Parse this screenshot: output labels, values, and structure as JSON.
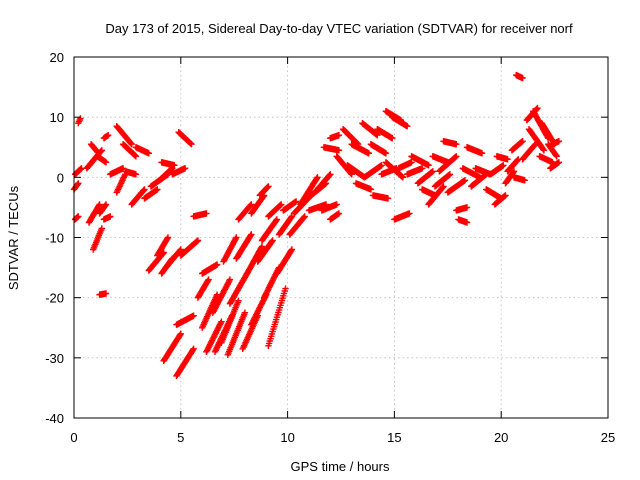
{
  "chart_data": {
    "type": "scatter",
    "title": "Day 173 of 2015, Sidereal Day-to-day VTEC variation (SDTVAR) for receiver norf",
    "xlabel": "GPS time / hours",
    "ylabel": "SDTVAR / TECUs",
    "xlim": [
      0,
      25
    ],
    "ylim": [
      -40,
      20
    ],
    "xticks": [
      "0",
      "5",
      "10",
      "15",
      "20",
      "25"
    ],
    "yticks": [
      "-40",
      "-30",
      "-20",
      "-10",
      "0",
      "10",
      "20"
    ],
    "grid": true,
    "marker": "plus",
    "color": "#ff0000",
    "tracks": [
      {
        "x": [
          0.05,
          0.35
        ],
        "y": [
          0.5,
          1.5
        ]
      },
      {
        "x": [
          0.0,
          0.2
        ],
        "y": [
          -2.0,
          -1.0
        ]
      },
      {
        "x": [
          0.2,
          0.3
        ],
        "y": [
          9.0,
          9.8
        ]
      },
      {
        "x": [
          0.05,
          0.2
        ],
        "y": [
          -7.0,
          -6.5
        ]
      },
      {
        "x": [
          0.6,
          1.3
        ],
        "y": [
          1.5,
          4.5
        ]
      },
      {
        "x": [
          0.7,
          1.2
        ],
        "y": [
          -7.5,
          -4.5
        ]
      },
      {
        "x": [
          0.9,
          1.3
        ],
        "y": [
          -12.0,
          -8.5
        ]
      },
      {
        "x": [
          0.8,
          1.1
        ],
        "y": [
          5.5,
          4.2
        ]
      },
      {
        "x": [
          1.1,
          1.5
        ],
        "y": [
          3.5,
          2.5
        ]
      },
      {
        "x": [
          1.2,
          1.5
        ],
        "y": [
          -6.0,
          -4.5
        ]
      },
      {
        "x": [
          1.2,
          1.5
        ],
        "y": [
          -19.5,
          -19.3
        ]
      },
      {
        "x": [
          1.4,
          1.6
        ],
        "y": [
          6.5,
          7.0
        ]
      },
      {
        "x": [
          1.4,
          1.7
        ],
        "y": [
          -7.0,
          -6.5
        ]
      },
      {
        "x": [
          1.7,
          2.3
        ],
        "y": [
          0.5,
          1.5
        ]
      },
      {
        "x": [
          2.0,
          2.7
        ],
        "y": [
          8.5,
          5.5
        ]
      },
      {
        "x": [
          2.0,
          2.4
        ],
        "y": [
          -2.5,
          0.5
        ]
      },
      {
        "x": [
          2.3,
          2.9
        ],
        "y": [
          5.5,
          3.5
        ]
      },
      {
        "x": [
          2.4,
          2.9
        ],
        "y": [
          1.0,
          0.5
        ]
      },
      {
        "x": [
          2.7,
          3.3
        ],
        "y": [
          -4.5,
          -2.0
        ]
      },
      {
        "x": [
          2.9,
          3.5
        ],
        "y": [
          5.0,
          4.0
        ]
      },
      {
        "x": [
          3.3,
          3.9
        ],
        "y": [
          -3.5,
          -2.0
        ]
      },
      {
        "x": [
          3.5,
          4.2
        ],
        "y": [
          -15.5,
          -12.5
        ]
      },
      {
        "x": [
          3.6,
          4.4
        ],
        "y": [
          -1.5,
          0.5
        ]
      },
      {
        "x": [
          3.9,
          4.4
        ],
        "y": [
          -13.0,
          -10.0
        ]
      },
      {
        "x": [
          4.0,
          4.6
        ],
        "y": [
          -0.5,
          1.5
        ]
      },
      {
        "x": [
          4.1,
          4.6
        ],
        "y": [
          -16.0,
          -13.5
        ]
      },
      {
        "x": [
          4.3,
          5.0
        ],
        "y": [
          -15.0,
          -12.0
        ]
      },
      {
        "x": [
          4.1,
          4.7
        ],
        "y": [
          2.5,
          2.0
        ]
      },
      {
        "x": [
          4.2,
          5.0
        ],
        "y": [
          -30.5,
          -26.0
        ]
      },
      {
        "x": [
          4.6,
          5.2
        ],
        "y": [
          0.5,
          1.5
        ]
      },
      {
        "x": [
          4.9,
          5.5
        ],
        "y": [
          7.5,
          5.5
        ]
      },
      {
        "x": [
          5.0,
          5.8
        ],
        "y": [
          -13.0,
          -10.5
        ]
      },
      {
        "x": [
          4.8,
          5.6
        ],
        "y": [
          -24.5,
          -23.0
        ]
      },
      {
        "x": [
          4.8,
          5.6
        ],
        "y": [
          -33.0,
          -28.5
        ]
      },
      {
        "x": [
          5.6,
          6.2
        ],
        "y": [
          -6.5,
          -6.0
        ]
      },
      {
        "x": [
          5.8,
          6.3
        ],
        "y": [
          -20.0,
          -17.0
        ]
      },
      {
        "x": [
          6.0,
          6.7
        ],
        "y": [
          -25.0,
          -19.5
        ]
      },
      {
        "x": [
          6.0,
          6.7
        ],
        "y": [
          -16.0,
          -14.5
        ]
      },
      {
        "x": [
          6.2,
          6.9
        ],
        "y": [
          -29.0,
          -24.0
        ]
      },
      {
        "x": [
          6.5,
          7.3
        ],
        "y": [
          -22.5,
          -17.0
        ]
      },
      {
        "x": [
          6.6,
          7.4
        ],
        "y": [
          -29.0,
          -23.0
        ]
      },
      {
        "x": [
          6.9,
          7.7
        ],
        "y": [
          -27.5,
          -20.5
        ]
      },
      {
        "x": [
          7.0,
          7.6
        ],
        "y": [
          -14.0,
          -10.0
        ]
      },
      {
        "x": [
          7.2,
          8.0
        ],
        "y": [
          -29.5,
          -22.5
        ]
      },
      {
        "x": [
          7.3,
          8.1
        ],
        "y": [
          -21.0,
          -16.0
        ]
      },
      {
        "x": [
          7.6,
          8.3
        ],
        "y": [
          -13.5,
          -9.5
        ]
      },
      {
        "x": [
          7.7,
          8.3
        ],
        "y": [
          -7.0,
          -4.5
        ]
      },
      {
        "x": [
          7.9,
          8.6
        ],
        "y": [
          -28.5,
          -23.0
        ]
      },
      {
        "x": [
          8.1,
          8.8
        ],
        "y": [
          -16.0,
          -11.5
        ]
      },
      {
        "x": [
          8.3,
          9.0
        ],
        "y": [
          -24.5,
          -19.5
        ]
      },
      {
        "x": [
          8.3,
          8.9
        ],
        "y": [
          -6.0,
          -3.0
        ]
      },
      {
        "x": [
          8.6,
          9.3
        ],
        "y": [
          -14.0,
          -10.5
        ]
      },
      {
        "x": [
          8.7,
          9.1
        ],
        "y": [
          -3.0,
          -1.5
        ]
      },
      {
        "x": [
          8.9,
          9.6
        ],
        "y": [
          -20.0,
          -15.0
        ]
      },
      {
        "x": [
          8.8,
          9.5
        ],
        "y": [
          -10.5,
          -7.0
        ]
      },
      {
        "x": [
          9.1,
          9.9
        ],
        "y": [
          -28.0,
          -18.5
        ]
      },
      {
        "x": [
          9.1,
          9.7
        ],
        "y": [
          -6.5,
          -4.5
        ]
      },
      {
        "x": [
          9.5,
          10.2
        ],
        "y": [
          -16.0,
          -12.0
        ]
      },
      {
        "x": [
          9.6,
          10.2
        ],
        "y": [
          -9.5,
          -6.5
        ]
      },
      {
        "x": [
          9.8,
          10.4
        ],
        "y": [
          -5.5,
          -4.0
        ]
      },
      {
        "x": [
          10.1,
          10.8
        ],
        "y": [
          -9.5,
          -6.5
        ]
      },
      {
        "x": [
          10.3,
          11.1
        ],
        "y": [
          -6.0,
          -3.0
        ]
      },
      {
        "x": [
          10.6,
          11.4
        ],
        "y": [
          -4.5,
          0.0
        ]
      },
      {
        "x": [
          11.0,
          11.8
        ],
        "y": [
          -5.5,
          -4.5
        ]
      },
      {
        "x": [
          11.1,
          11.8
        ],
        "y": [
          -3.0,
          -1.0
        ]
      },
      {
        "x": [
          11.4,
          12.0
        ],
        "y": [
          -2.0,
          0.5
        ]
      },
      {
        "x": [
          11.6,
          12.3
        ],
        "y": [
          -5.5,
          -4.5
        ]
      },
      {
        "x": [
          11.7,
          12.4
        ],
        "y": [
          5.0,
          4.5
        ]
      },
      {
        "x": [
          12.0,
          12.4
        ],
        "y": [
          6.5,
          7.0
        ]
      },
      {
        "x": [
          12.0,
          12.4
        ],
        "y": [
          -7.0,
          -6.0
        ]
      },
      {
        "x": [
          12.3,
          13.0
        ],
        "y": [
          3.5,
          0.5
        ]
      },
      {
        "x": [
          12.6,
          13.3
        ],
        "y": [
          8.0,
          5.5
        ]
      },
      {
        "x": [
          12.8,
          13.6
        ],
        "y": [
          2.0,
          0.0
        ]
      },
      {
        "x": [
          13.0,
          13.8
        ],
        "y": [
          5.5,
          4.0
        ]
      },
      {
        "x": [
          13.2,
          13.9
        ],
        "y": [
          -1.0,
          -2.0
        ]
      },
      {
        "x": [
          13.5,
          14.2
        ],
        "y": [
          9.0,
          7.0
        ]
      },
      {
        "x": [
          13.6,
          14.4
        ],
        "y": [
          0.0,
          2.0
        ]
      },
      {
        "x": [
          13.9,
          14.6
        ],
        "y": [
          5.5,
          4.0
        ]
      },
      {
        "x": [
          14.0,
          14.7
        ],
        "y": [
          -3.0,
          -3.5
        ]
      },
      {
        "x": [
          14.2,
          14.9
        ],
        "y": [
          8.0,
          6.5
        ]
      },
      {
        "x": [
          14.4,
          15.1
        ],
        "y": [
          0.5,
          1.5
        ]
      },
      {
        "x": [
          14.6,
          15.4
        ],
        "y": [
          2.5,
          0.0
        ]
      },
      {
        "x": [
          14.6,
          15.3
        ],
        "y": [
          11.0,
          9.5
        ]
      },
      {
        "x": [
          14.9,
          15.6
        ],
        "y": [
          10.0,
          8.5
        ]
      },
      {
        "x": [
          15.0,
          15.7
        ],
        "y": [
          -7.0,
          -6.0
        ]
      },
      {
        "x": [
          15.2,
          15.8
        ],
        "y": [
          1.5,
          2.5
        ]
      },
      {
        "x": [
          15.6,
          16.3
        ],
        "y": [
          0.5,
          1.5
        ]
      },
      {
        "x": [
          15.8,
          16.6
        ],
        "y": [
          3.5,
          2.0
        ]
      },
      {
        "x": [
          16.1,
          16.8
        ],
        "y": [
          -1.0,
          1.0
        ]
      },
      {
        "x": [
          16.3,
          16.9
        ],
        "y": [
          -2.0,
          -3.0
        ]
      },
      {
        "x": [
          16.6,
          17.3
        ],
        "y": [
          -4.5,
          -1.5
        ]
      },
      {
        "x": [
          16.8,
          17.5
        ],
        "y": [
          3.5,
          2.5
        ]
      },
      {
        "x": [
          16.9,
          17.6
        ],
        "y": [
          -1.5,
          0.5
        ]
      },
      {
        "x": [
          17.1,
          17.9
        ],
        "y": [
          1.0,
          3.5
        ]
      },
      {
        "x": [
          17.3,
          17.9
        ],
        "y": [
          6.0,
          5.5
        ]
      },
      {
        "x": [
          17.5,
          18.3
        ],
        "y": [
          -2.5,
          -0.5
        ]
      },
      {
        "x": [
          17.9,
          18.4
        ],
        "y": [
          -5.5,
          -5.0
        ]
      },
      {
        "x": [
          18.0,
          18.4
        ],
        "y": [
          -7.0,
          -7.5
        ]
      },
      {
        "x": [
          18.2,
          19.0
        ],
        "y": [
          1.5,
          0.0
        ]
      },
      {
        "x": [
          18.4,
          19.1
        ],
        "y": [
          5.0,
          4.0
        ]
      },
      {
        "x": [
          18.6,
          19.3
        ],
        "y": [
          -1.5,
          0.5
        ]
      },
      {
        "x": [
          18.8,
          19.5
        ],
        "y": [
          1.5,
          0.5
        ]
      },
      {
        "x": [
          19.3,
          20.0
        ],
        "y": [
          -2.0,
          -3.5
        ]
      },
      {
        "x": [
          19.5,
          20.1
        ],
        "y": [
          0.5,
          2.0
        ]
      },
      {
        "x": [
          19.7,
          20.2
        ],
        "y": [
          -4.5,
          -3.0
        ]
      },
      {
        "x": [
          19.8,
          20.3
        ],
        "y": [
          3.5,
          3.0
        ]
      },
      {
        "x": [
          20.2,
          20.6
        ],
        "y": [
          -1.0,
          1.0
        ]
      },
      {
        "x": [
          20.3,
          20.8
        ],
        "y": [
          1.0,
          3.0
        ]
      },
      {
        "x": [
          20.5,
          21.0
        ],
        "y": [
          4.5,
          6.0
        ]
      },
      {
        "x": [
          20.6,
          21.1
        ],
        "y": [
          0.0,
          -0.5
        ]
      },
      {
        "x": [
          20.7,
          21.0
        ],
        "y": [
          17.0,
          16.5
        ]
      },
      {
        "x": [
          21.0,
          21.6
        ],
        "y": [
          3.0,
          5.5
        ]
      },
      {
        "x": [
          21.2,
          21.7
        ],
        "y": [
          9.5,
          11.5
        ]
      },
      {
        "x": [
          21.3,
          22.0
        ],
        "y": [
          8.0,
          4.5
        ]
      },
      {
        "x": [
          21.5,
          22.2
        ],
        "y": [
          11.0,
          6.5
        ]
      },
      {
        "x": [
          21.8,
          22.4
        ],
        "y": [
          3.5,
          2.5
        ]
      },
      {
        "x": [
          21.9,
          22.5
        ],
        "y": [
          9.0,
          5.5
        ]
      },
      {
        "x": [
          22.2,
          22.6
        ],
        "y": [
          5.5,
          3.5
        ]
      },
      {
        "x": [
          22.3,
          22.7
        ],
        "y": [
          1.5,
          2.5
        ]
      },
      {
        "x": [
          22.4,
          22.7
        ],
        "y": [
          5.5,
          6.0
        ]
      }
    ]
  }
}
